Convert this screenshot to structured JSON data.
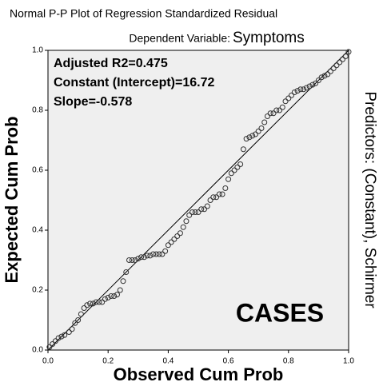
{
  "chart_data": {
    "type": "scatter",
    "title": "Normal P-P Plot of Regression Standardized Residual",
    "subtitle_prefix": "Dependent Variable:",
    "subtitle": "Symptoms",
    "side_label": "Predictors: (Constant), Schirmer",
    "annotations": [
      "Adjusted R2=0.475",
      "Constant (Intercept)=16.72",
      "Slope=-0.578"
    ],
    "watermark": "CASES",
    "x_label": "Observed Cum Prob",
    "y_label": "Expected Cum Prob",
    "xlim": [
      0,
      1
    ],
    "ylim": [
      0,
      1
    ],
    "xticks": [
      {
        "value": 0,
        "label": "0.0"
      },
      0.2,
      0.4,
      0.6,
      0.8,
      {
        "value": 1,
        "label": "1.0"
      }
    ],
    "yticks": [
      {
        "value": 0,
        "label": "0.0"
      },
      0.2,
      0.4,
      0.6,
      0.8,
      {
        "value": 1,
        "label": "1.0"
      }
    ],
    "color": "#333333",
    "background": "#efefef",
    "x": [
      0.005,
      0.015,
      0.025,
      0.035,
      0.045,
      0.055,
      0.07,
      0.08,
      0.09,
      0.1,
      0.11,
      0.12,
      0.13,
      0.14,
      0.15,
      0.16,
      0.17,
      0.18,
      0.19,
      0.2,
      0.21,
      0.22,
      0.23,
      0.24,
      0.25,
      0.26,
      0.27,
      0.28,
      0.29,
      0.3,
      0.31,
      0.32,
      0.33,
      0.34,
      0.35,
      0.36,
      0.37,
      0.38,
      0.39,
      0.4,
      0.41,
      0.42,
      0.43,
      0.44,
      0.45,
      0.46,
      0.47,
      0.48,
      0.49,
      0.5,
      0.51,
      0.52,
      0.53,
      0.54,
      0.55,
      0.56,
      0.57,
      0.58,
      0.59,
      0.6,
      0.61,
      0.62,
      0.63,
      0.64,
      0.65,
      0.66,
      0.67,
      0.68,
      0.69,
      0.7,
      0.71,
      0.72,
      0.73,
      0.74,
      0.75,
      0.76,
      0.77,
      0.78,
      0.79,
      0.8,
      0.81,
      0.82,
      0.83,
      0.84,
      0.85,
      0.86,
      0.87,
      0.88,
      0.89,
      0.9,
      0.91,
      0.92,
      0.93,
      0.94,
      0.95,
      0.96,
      0.97,
      0.98,
      0.99,
      1.0
    ],
    "values": [
      0.01,
      0.02,
      0.03,
      0.04,
      0.045,
      0.05,
      0.06,
      0.07,
      0.09,
      0.1,
      0.12,
      0.14,
      0.15,
      0.155,
      0.155,
      0.16,
      0.16,
      0.16,
      0.17,
      0.175,
      0.18,
      0.18,
      0.185,
      0.2,
      0.23,
      0.26,
      0.3,
      0.3,
      0.3,
      0.305,
      0.31,
      0.31,
      0.315,
      0.315,
      0.32,
      0.32,
      0.32,
      0.32,
      0.33,
      0.35,
      0.36,
      0.37,
      0.38,
      0.39,
      0.41,
      0.43,
      0.45,
      0.46,
      0.46,
      0.46,
      0.47,
      0.47,
      0.48,
      0.5,
      0.51,
      0.51,
      0.52,
      0.52,
      0.54,
      0.57,
      0.59,
      0.6,
      0.61,
      0.62,
      0.67,
      0.705,
      0.71,
      0.715,
      0.72,
      0.73,
      0.74,
      0.76,
      0.78,
      0.79,
      0.79,
      0.8,
      0.8,
      0.81,
      0.83,
      0.84,
      0.85,
      0.86,
      0.865,
      0.87,
      0.87,
      0.875,
      0.88,
      0.885,
      0.89,
      0.9,
      0.91,
      0.915,
      0.92,
      0.93,
      0.94,
      0.95,
      0.96,
      0.97,
      0.98,
      0.995
    ]
  }
}
